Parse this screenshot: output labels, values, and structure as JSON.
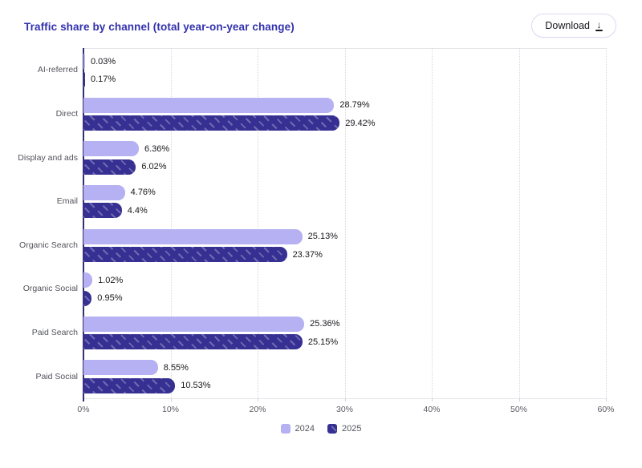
{
  "header": {
    "title": "Traffic share by channel (total year-on-year change)",
    "download_label": "Download",
    "download_icon": "download-arrow"
  },
  "chart_data": {
    "type": "bar",
    "orientation": "horizontal",
    "title": "Traffic share by channel (total year-on-year change)",
    "categories": [
      "AI-referred",
      "Direct",
      "Display and ads",
      "Email",
      "Organic Search",
      "Organic Social",
      "Paid Search",
      "Paid Social"
    ],
    "series": [
      {
        "name": "2024",
        "color": "#b5b1f2",
        "pattern": "solid",
        "values": [
          0.03,
          28.79,
          6.36,
          4.76,
          25.13,
          1.02,
          25.36,
          8.55
        ],
        "labels": [
          "0.03%",
          "28.79%",
          "6.36%",
          "4.76%",
          "25.13%",
          "1.02%",
          "25.36%",
          "8.55%"
        ]
      },
      {
        "name": "2025",
        "color": "#373093",
        "pattern": "diagonal-hatch",
        "values": [
          0.17,
          29.42,
          6.02,
          4.4,
          23.37,
          0.95,
          25.15,
          10.53
        ],
        "labels": [
          "0.17%",
          "29.42%",
          "6.02%",
          "4.4%",
          "23.37%",
          "0.95%",
          "25.15%",
          "10.53%"
        ]
      }
    ],
    "xlim": [
      0,
      60
    ],
    "x_ticks": [
      "0%",
      "10%",
      "20%",
      "30%",
      "40%",
      "50%",
      "60%"
    ],
    "x_tick_values": [
      0,
      10,
      20,
      30,
      40,
      50,
      60
    ],
    "grid": "vertical-dotted",
    "legend_position": "bottom-center",
    "value_labels": "outside-end"
  },
  "colors": {
    "title": "#3231ad",
    "series_2024": "#b5b1f2",
    "series_2025": "#373093",
    "hatch_stripe": "rgba(255,255,255,0.28)",
    "value_label": "#17171c",
    "axis_text": "#5a5b63",
    "category_text": "#53545c",
    "gridline": "#d8d8de",
    "axis_line": "#e4e4ea",
    "zero_line": "#333070",
    "button_border": "#dcdaf2"
  }
}
